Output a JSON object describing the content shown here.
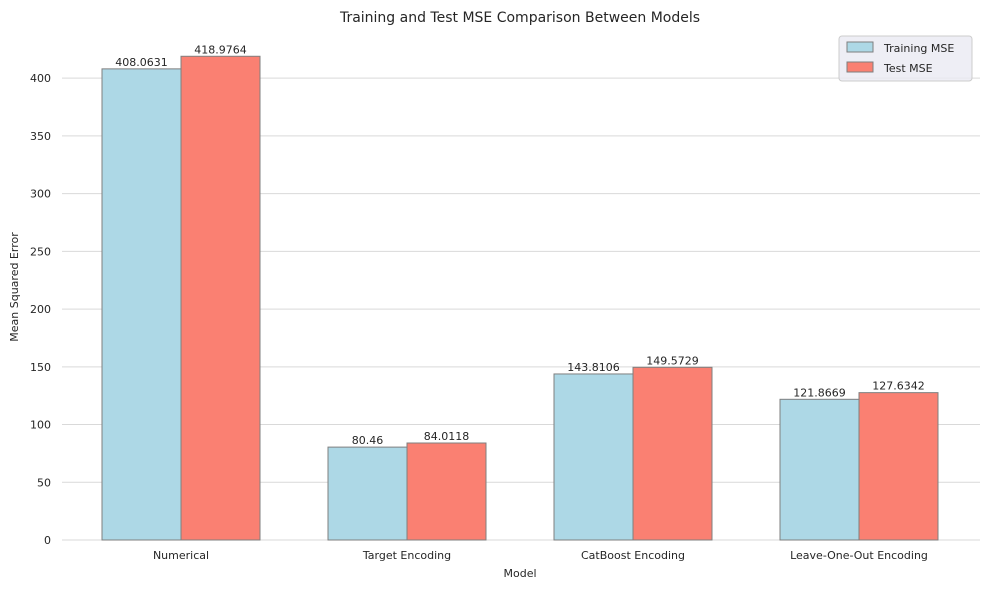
{
  "chart_data": {
    "type": "bar",
    "title": "Training and Test MSE Comparison Between Models",
    "xlabel": "Model",
    "ylabel": "Mean Squared Error",
    "categories": [
      "Numerical",
      "Target Encoding",
      "CatBoost Encoding",
      "Leave-One-Out Encoding"
    ],
    "series": [
      {
        "name": "Training MSE",
        "color": "#add8e6",
        "values": [
          408.0631,
          80.46,
          143.8106,
          121.8669
        ],
        "labels": [
          "408.0631",
          "80.46",
          "143.8106",
          "121.8669"
        ]
      },
      {
        "name": "Test MSE",
        "color": "#fa8072",
        "values": [
          418.9764,
          84.0118,
          149.5729,
          127.6342
        ],
        "labels": [
          "418.9764",
          "84.0118",
          "149.5729",
          "127.6342"
        ]
      }
    ],
    "ylim": [
      0,
      440
    ],
    "yticks": [
      0,
      50,
      100,
      150,
      200,
      250,
      300,
      350,
      400
    ],
    "grid": "horizontal",
    "legend_position": "top-right"
  }
}
